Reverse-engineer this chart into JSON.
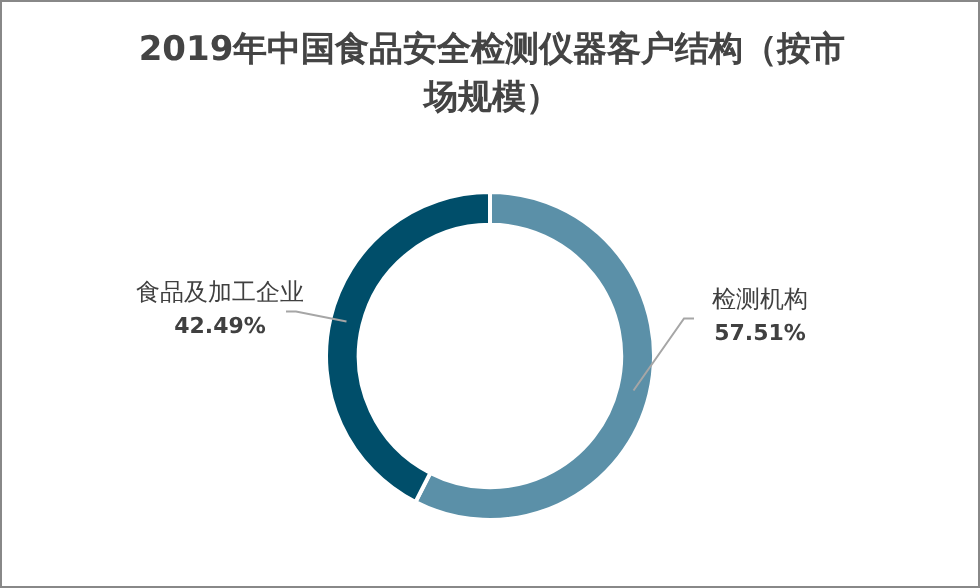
{
  "chart_data": {
    "type": "donut",
    "title": "2019年中国食品安全检测仪器客户结构（按市场规模）",
    "categories": [
      "检测机构",
      "食品及加工企业"
    ],
    "values": [
      57.51,
      42.49
    ],
    "colors": [
      "#5b90a8",
      "#004e6a"
    ],
    "value_labels": [
      "57.51%",
      "42.49%"
    ],
    "legend": false
  }
}
